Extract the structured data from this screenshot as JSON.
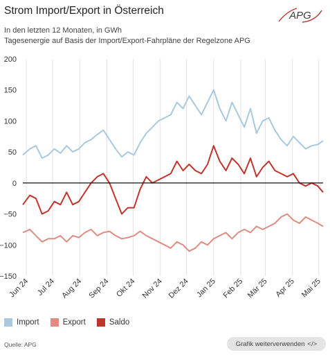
{
  "header": {
    "title": "Strom Import/Export in Österreich",
    "subtitle_1": "In den letzten 12 Monaten, in GWh",
    "subtitle_2": "Tagesenergie auf Basis der Import/Export-Fahrpläne der Regelzone APG",
    "logo_text": "APG"
  },
  "legend": [
    {
      "label": "Import",
      "color": "#a9c9de"
    },
    {
      "label": "Export",
      "color": "#df8c82"
    },
    {
      "label": "Saldo",
      "color": "#c0342c"
    }
  ],
  "footer": {
    "source": "Quelle: APG",
    "button_label": "Grafik weiterverwenden",
    "button_icon": "</>"
  },
  "chart_data": {
    "type": "line",
    "ylim": [
      -150,
      200
    ],
    "yticks": [
      -150,
      -100,
      -50,
      0,
      50,
      100,
      150,
      200
    ],
    "xlim": [
      "2024-05-28",
      "2025-05-06"
    ],
    "xticks": [
      {
        "date": "2024-06-01",
        "label": "Jun 24"
      },
      {
        "date": "2024-07-01",
        "label": "Jul 24"
      },
      {
        "date": "2024-08-01",
        "label": "Aug 24"
      },
      {
        "date": "2024-09-01",
        "label": "Sep 24"
      },
      {
        "date": "2024-10-01",
        "label": "Okt 24"
      },
      {
        "date": "2024-11-01",
        "label": "Nov 24"
      },
      {
        "date": "2024-12-01",
        "label": "Dez 24"
      },
      {
        "date": "2025-01-01",
        "label": "Jan 25"
      },
      {
        "date": "2025-02-01",
        "label": "Feb 25"
      },
      {
        "date": "2025-03-01",
        "label": "Mär 25"
      },
      {
        "date": "2025-04-01",
        "label": "Apr 25"
      },
      {
        "date": "2025-05-01",
        "label": "Mai 25"
      }
    ],
    "grid": "vertical",
    "legend_position": "bottom-left",
    "series": [
      {
        "name": "Import",
        "color": "#a9c9de",
        "x": [
          "2024-05-28",
          "2024-06-05",
          "2024-06-12",
          "2024-06-19",
          "2024-06-26",
          "2024-07-03",
          "2024-07-10",
          "2024-07-17",
          "2024-07-24",
          "2024-07-31",
          "2024-08-07",
          "2024-08-14",
          "2024-08-21",
          "2024-08-28",
          "2024-09-04",
          "2024-09-11",
          "2024-09-18",
          "2024-09-25",
          "2024-10-02",
          "2024-10-09",
          "2024-10-16",
          "2024-10-23",
          "2024-10-30",
          "2024-11-06",
          "2024-11-13",
          "2024-11-20",
          "2024-11-27",
          "2024-12-04",
          "2024-12-11",
          "2024-12-18",
          "2024-12-25",
          "2025-01-01",
          "2025-01-08",
          "2025-01-15",
          "2025-01-22",
          "2025-01-29",
          "2025-02-05",
          "2025-02-12",
          "2025-02-19",
          "2025-02-26",
          "2025-03-05",
          "2025-03-12",
          "2025-03-19",
          "2025-03-26",
          "2025-04-02",
          "2025-04-09",
          "2025-04-16",
          "2025-04-23",
          "2025-04-30",
          "2025-05-06"
        ],
        "y": [
          45,
          55,
          60,
          40,
          45,
          55,
          48,
          60,
          50,
          55,
          65,
          70,
          78,
          85,
          70,
          55,
          42,
          50,
          45,
          65,
          80,
          90,
          100,
          105,
          110,
          130,
          120,
          140,
          125,
          110,
          130,
          150,
          120,
          100,
          130,
          110,
          90,
          120,
          80,
          100,
          105,
          85,
          70,
          60,
          75,
          65,
          55,
          60,
          62,
          68
        ]
      },
      {
        "name": "Export",
        "color": "#df8c82",
        "x": [
          "2024-05-28",
          "2024-06-05",
          "2024-06-12",
          "2024-06-19",
          "2024-06-26",
          "2024-07-03",
          "2024-07-10",
          "2024-07-17",
          "2024-07-24",
          "2024-07-31",
          "2024-08-07",
          "2024-08-14",
          "2024-08-21",
          "2024-08-28",
          "2024-09-04",
          "2024-09-11",
          "2024-09-18",
          "2024-09-25",
          "2024-10-02",
          "2024-10-09",
          "2024-10-16",
          "2024-10-23",
          "2024-10-30",
          "2024-11-06",
          "2024-11-13",
          "2024-11-20",
          "2024-11-27",
          "2024-12-04",
          "2024-12-11",
          "2024-12-18",
          "2024-12-25",
          "2025-01-01",
          "2025-01-08",
          "2025-01-15",
          "2025-01-22",
          "2025-01-29",
          "2025-02-05",
          "2025-02-12",
          "2025-02-19",
          "2025-02-26",
          "2025-03-05",
          "2025-03-12",
          "2025-03-19",
          "2025-03-26",
          "2025-04-02",
          "2025-04-09",
          "2025-04-16",
          "2025-04-23",
          "2025-04-30",
          "2025-05-06"
        ],
        "y": [
          -80,
          -75,
          -85,
          -95,
          -90,
          -90,
          -85,
          -95,
          -85,
          -88,
          -80,
          -75,
          -85,
          -80,
          -78,
          -85,
          -90,
          -88,
          -85,
          -78,
          -85,
          -90,
          -95,
          -100,
          -105,
          -95,
          -100,
          -110,
          -105,
          -95,
          -100,
          -90,
          -85,
          -80,
          -90,
          -80,
          -75,
          -80,
          -70,
          -75,
          -70,
          -65,
          -55,
          -50,
          -60,
          -65,
          -55,
          -60,
          -65,
          -70
        ]
      },
      {
        "name": "Saldo",
        "color": "#c0342c",
        "x": [
          "2024-05-28",
          "2024-06-05",
          "2024-06-12",
          "2024-06-19",
          "2024-06-26",
          "2024-07-03",
          "2024-07-10",
          "2024-07-17",
          "2024-07-24",
          "2024-07-31",
          "2024-08-07",
          "2024-08-14",
          "2024-08-21",
          "2024-08-28",
          "2024-09-04",
          "2024-09-11",
          "2024-09-18",
          "2024-09-25",
          "2024-10-02",
          "2024-10-09",
          "2024-10-16",
          "2024-10-23",
          "2024-10-30",
          "2024-11-06",
          "2024-11-13",
          "2024-11-20",
          "2024-11-27",
          "2024-12-04",
          "2024-12-11",
          "2024-12-18",
          "2024-12-25",
          "2025-01-01",
          "2025-01-08",
          "2025-01-15",
          "2025-01-22",
          "2025-01-29",
          "2025-02-05",
          "2025-02-12",
          "2025-02-19",
          "2025-02-26",
          "2025-03-05",
          "2025-03-12",
          "2025-03-19",
          "2025-03-26",
          "2025-04-02",
          "2025-04-09",
          "2025-04-16",
          "2025-04-23",
          "2025-04-30",
          "2025-05-06"
        ],
        "y": [
          -35,
          -20,
          -25,
          -50,
          -45,
          -30,
          -35,
          -15,
          -35,
          -30,
          -15,
          0,
          10,
          15,
          0,
          -25,
          -50,
          -40,
          -40,
          -10,
          10,
          0,
          5,
          10,
          15,
          35,
          20,
          30,
          20,
          15,
          30,
          60,
          35,
          20,
          40,
          30,
          15,
          40,
          10,
          25,
          35,
          20,
          15,
          10,
          15,
          0,
          -5,
          0,
          -5,
          -15
        ]
      }
    ]
  }
}
